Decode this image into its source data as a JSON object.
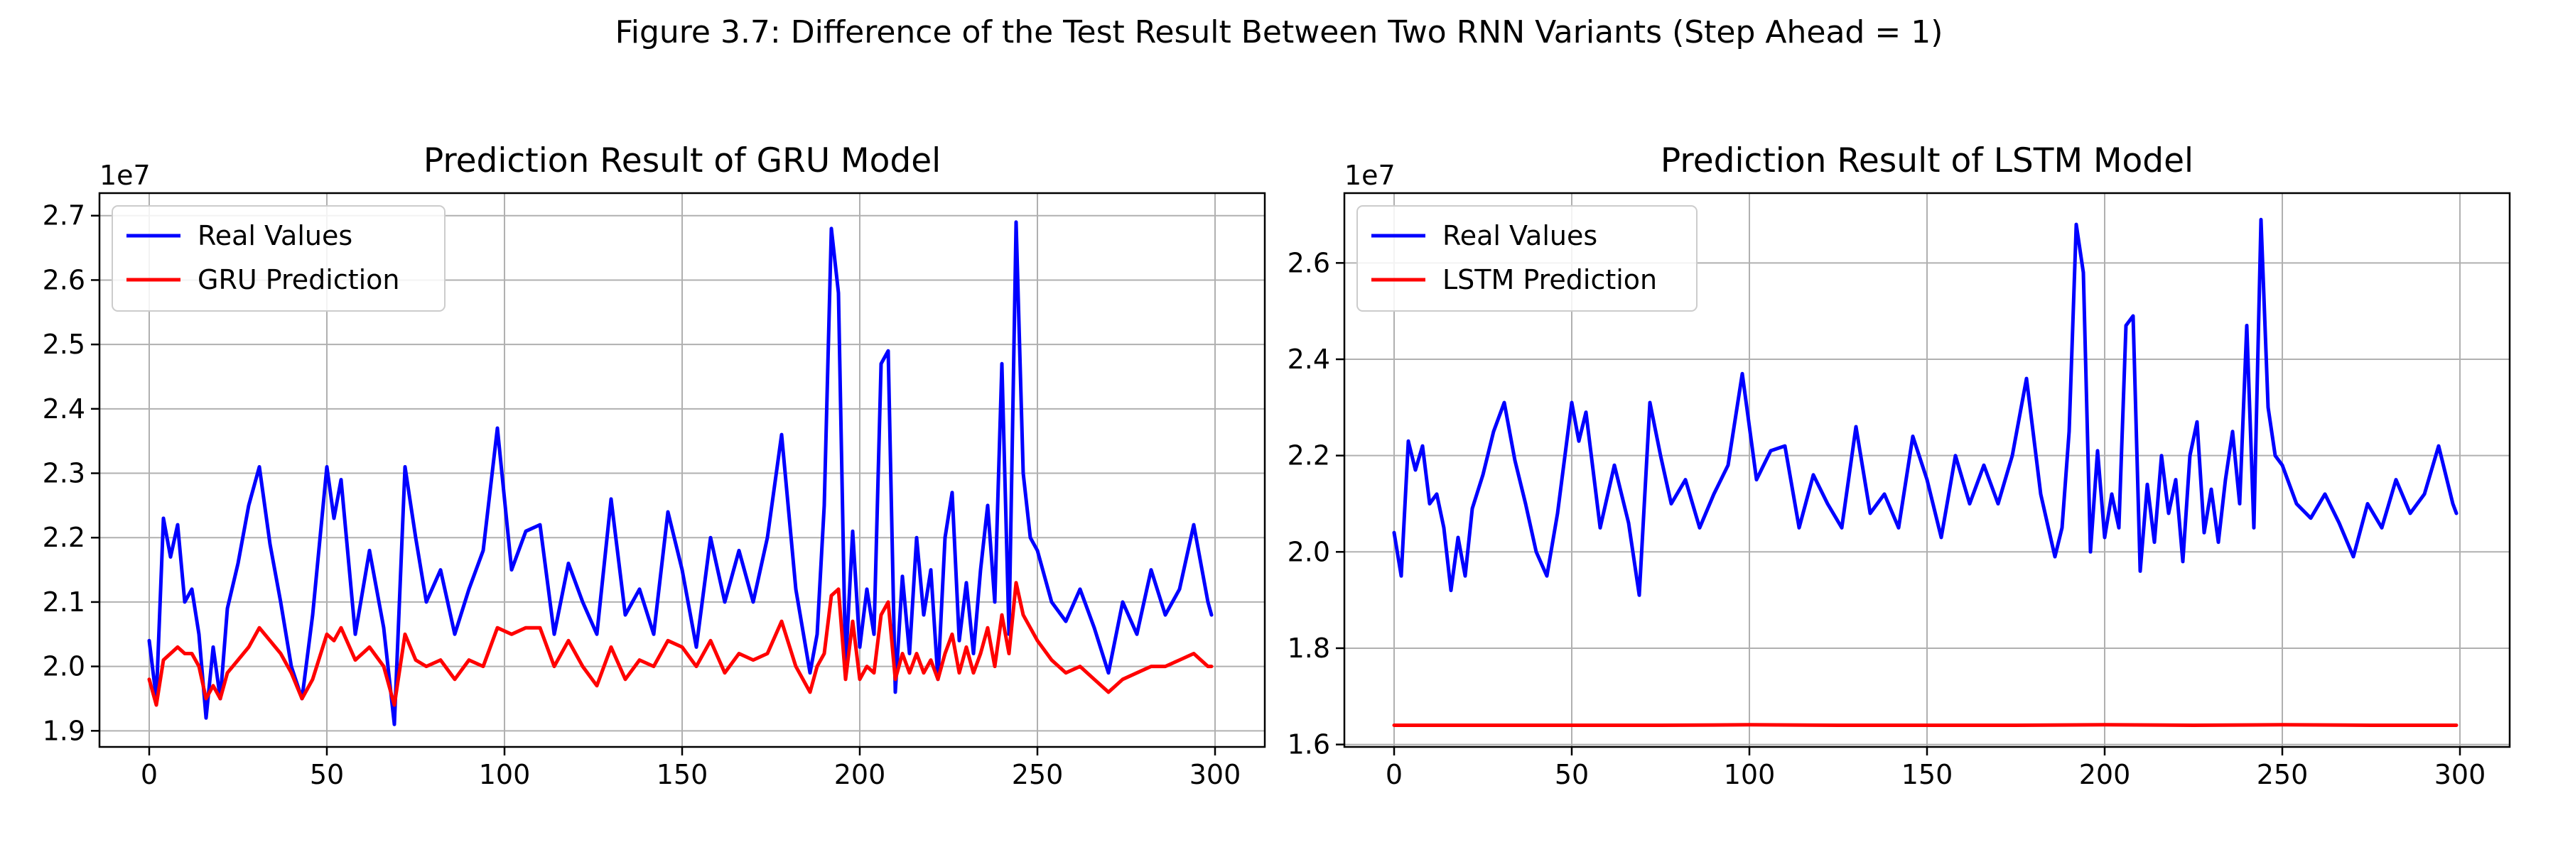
{
  "figure_title": "Figure 3.7: Difference of the Test Result Between Two RNN Variants (Step Ahead = 1)",
  "colors": {
    "real": "#0000ff",
    "prediction": "#ff0000",
    "grid": "#b0b0b0"
  },
  "chart_data": [
    {
      "type": "line",
      "title": "Prediction Result of GRU Model",
      "xlabel": "",
      "ylabel": "",
      "offset_label": "1e7",
      "xlim": [
        -14,
        314
      ],
      "ylim": [
        1.875,
        2.735
      ],
      "xticks": [
        0,
        50,
        100,
        150,
        200,
        250,
        300
      ],
      "yticks": [
        1.9,
        2.0,
        2.1,
        2.2,
        2.3,
        2.4,
        2.5,
        2.6,
        2.7
      ],
      "ytick_labels": [
        "1.9",
        "2.0",
        "2.1",
        "2.2",
        "2.3",
        "2.4",
        "2.5",
        "2.6",
        "2.7"
      ],
      "grid": true,
      "legend_position": "top-left",
      "series": [
        {
          "name": "Real Values",
          "color": "#0000ff",
          "x": [
            0,
            2,
            4,
            6,
            8,
            10,
            12,
            14,
            16,
            18,
            20,
            22,
            25,
            28,
            31,
            34,
            37,
            40,
            43,
            46,
            50,
            52,
            54,
            58,
            62,
            66,
            69,
            72,
            75,
            78,
            82,
            86,
            90,
            94,
            98,
            102,
            106,
            110,
            114,
            118,
            122,
            126,
            130,
            134,
            138,
            142,
            146,
            150,
            154,
            158,
            162,
            166,
            170,
            174,
            178,
            182,
            186,
            188,
            190,
            192,
            194,
            196,
            198,
            200,
            202,
            204,
            206,
            208,
            210,
            212,
            214,
            216,
            218,
            220,
            222,
            224,
            226,
            228,
            230,
            232,
            234,
            236,
            238,
            240,
            242,
            244,
            246,
            248,
            250,
            254,
            258,
            262,
            266,
            270,
            274,
            278,
            282,
            286,
            290,
            294,
            298,
            299
          ],
          "y": [
            2.04,
            1.95,
            2.23,
            2.17,
            2.22,
            2.1,
            2.12,
            2.05,
            1.92,
            2.03,
            1.95,
            2.09,
            2.16,
            2.25,
            2.31,
            2.19,
            2.1,
            2.0,
            1.95,
            2.08,
            2.31,
            2.23,
            2.29,
            2.05,
            2.18,
            2.06,
            1.91,
            2.31,
            2.2,
            2.1,
            2.15,
            2.05,
            2.12,
            2.18,
            2.37,
            2.15,
            2.21,
            2.22,
            2.05,
            2.16,
            2.1,
            2.05,
            2.26,
            2.08,
            2.12,
            2.05,
            2.24,
            2.15,
            2.03,
            2.2,
            2.1,
            2.18,
            2.1,
            2.2,
            2.36,
            2.12,
            1.99,
            2.05,
            2.25,
            2.68,
            2.58,
            2.0,
            2.21,
            2.03,
            2.12,
            2.05,
            2.47,
            2.49,
            1.96,
            2.14,
            2.02,
            2.2,
            2.08,
            2.15,
            1.98,
            2.2,
            2.27,
            2.04,
            2.13,
            2.02,
            2.15,
            2.25,
            2.1,
            2.47,
            2.05,
            2.69,
            2.3,
            2.2,
            2.18,
            2.1,
            2.07,
            2.12,
            2.06,
            1.99,
            2.1,
            2.05,
            2.15,
            2.08,
            2.12,
            2.22,
            2.1,
            2.08
          ]
        },
        {
          "name": "GRU Prediction",
          "color": "#ff0000",
          "x": [
            0,
            2,
            4,
            6,
            8,
            10,
            12,
            14,
            16,
            18,
            20,
            22,
            25,
            28,
            31,
            34,
            37,
            40,
            43,
            46,
            50,
            52,
            54,
            58,
            62,
            66,
            69,
            72,
            75,
            78,
            82,
            86,
            90,
            94,
            98,
            102,
            106,
            110,
            114,
            118,
            122,
            126,
            130,
            134,
            138,
            142,
            146,
            150,
            154,
            158,
            162,
            166,
            170,
            174,
            178,
            182,
            186,
            188,
            190,
            192,
            194,
            196,
            198,
            200,
            202,
            204,
            206,
            208,
            210,
            212,
            214,
            216,
            218,
            220,
            222,
            224,
            226,
            228,
            230,
            232,
            234,
            236,
            238,
            240,
            242,
            244,
            246,
            248,
            250,
            254,
            258,
            262,
            266,
            270,
            274,
            278,
            282,
            286,
            290,
            294,
            298,
            299
          ],
          "y": [
            1.98,
            1.94,
            2.01,
            2.02,
            2.03,
            2.02,
            2.02,
            2.0,
            1.95,
            1.97,
            1.95,
            1.99,
            2.01,
            2.03,
            2.06,
            2.04,
            2.02,
            1.99,
            1.95,
            1.98,
            2.05,
            2.04,
            2.06,
            2.01,
            2.03,
            2.0,
            1.94,
            2.05,
            2.01,
            2.0,
            2.01,
            1.98,
            2.01,
            2.0,
            2.06,
            2.05,
            2.06,
            2.06,
            2.0,
            2.04,
            2.0,
            1.97,
            2.03,
            1.98,
            2.01,
            2.0,
            2.04,
            2.03,
            2.0,
            2.04,
            1.99,
            2.02,
            2.01,
            2.02,
            2.07,
            2.0,
            1.96,
            2.0,
            2.02,
            2.11,
            2.12,
            1.98,
            2.07,
            1.98,
            2.0,
            1.99,
            2.08,
            2.1,
            1.98,
            2.02,
            1.99,
            2.02,
            1.99,
            2.01,
            1.98,
            2.02,
            2.05,
            1.99,
            2.03,
            1.99,
            2.02,
            2.06,
            2.0,
            2.08,
            2.02,
            2.13,
            2.08,
            2.06,
            2.04,
            2.01,
            1.99,
            2.0,
            1.98,
            1.96,
            1.98,
            1.99,
            2.0,
            2.0,
            2.01,
            2.02,
            2.0,
            2.0
          ]
        }
      ]
    },
    {
      "type": "line",
      "title": "Prediction Result of LSTM Model",
      "xlabel": "",
      "ylabel": "",
      "offset_label": "1e7",
      "xlim": [
        -14,
        314
      ],
      "ylim": [
        1.595,
        2.745
      ],
      "xticks": [
        0,
        50,
        100,
        150,
        200,
        250,
        300
      ],
      "yticks": [
        1.6,
        1.8,
        2.0,
        2.2,
        2.4,
        2.6
      ],
      "ytick_labels": [
        "1.6",
        "1.8",
        "2.0",
        "2.2",
        "2.4",
        "2.6"
      ],
      "grid": true,
      "legend_position": "top-left",
      "series": [
        {
          "name": "Real Values",
          "color": "#0000ff",
          "x": [
            0,
            2,
            4,
            6,
            8,
            10,
            12,
            14,
            16,
            18,
            20,
            22,
            25,
            28,
            31,
            34,
            37,
            40,
            43,
            46,
            50,
            52,
            54,
            58,
            62,
            66,
            69,
            72,
            75,
            78,
            82,
            86,
            90,
            94,
            98,
            102,
            106,
            110,
            114,
            118,
            122,
            126,
            130,
            134,
            138,
            142,
            146,
            150,
            154,
            158,
            162,
            166,
            170,
            174,
            178,
            182,
            186,
            188,
            190,
            192,
            194,
            196,
            198,
            200,
            202,
            204,
            206,
            208,
            210,
            212,
            214,
            216,
            218,
            220,
            222,
            224,
            226,
            228,
            230,
            232,
            234,
            236,
            238,
            240,
            242,
            244,
            246,
            248,
            250,
            254,
            258,
            262,
            266,
            270,
            274,
            278,
            282,
            286,
            290,
            294,
            298,
            299
          ],
          "y": [
            2.04,
            1.95,
            2.23,
            2.17,
            2.22,
            2.1,
            2.12,
            2.05,
            1.92,
            2.03,
            1.95,
            2.09,
            2.16,
            2.25,
            2.31,
            2.19,
            2.1,
            2.0,
            1.95,
            2.08,
            2.31,
            2.23,
            2.29,
            2.05,
            2.18,
            2.06,
            1.91,
            2.31,
            2.2,
            2.1,
            2.15,
            2.05,
            2.12,
            2.18,
            2.37,
            2.15,
            2.21,
            2.22,
            2.05,
            2.16,
            2.1,
            2.05,
            2.26,
            2.08,
            2.12,
            2.05,
            2.24,
            2.15,
            2.03,
            2.2,
            2.1,
            2.18,
            2.1,
            2.2,
            2.36,
            2.12,
            1.99,
            2.05,
            2.25,
            2.68,
            2.58,
            2.0,
            2.21,
            2.03,
            2.12,
            2.05,
            2.47,
            2.49,
            1.96,
            2.14,
            2.02,
            2.2,
            2.08,
            2.15,
            1.98,
            2.2,
            2.27,
            2.04,
            2.13,
            2.02,
            2.15,
            2.25,
            2.1,
            2.47,
            2.05,
            2.69,
            2.3,
            2.2,
            2.18,
            2.1,
            2.07,
            2.12,
            2.06,
            1.99,
            2.1,
            2.05,
            2.15,
            2.08,
            2.12,
            2.22,
            2.1,
            2.08
          ]
        },
        {
          "name": "LSTM Prediction",
          "color": "#ff0000",
          "x": [
            0,
            25,
            50,
            75,
            100,
            125,
            150,
            175,
            200,
            225,
            250,
            275,
            299
          ],
          "y": [
            1.64,
            1.64,
            1.64,
            1.64,
            1.641,
            1.64,
            1.64,
            1.64,
            1.641,
            1.64,
            1.641,
            1.64,
            1.64
          ]
        }
      ]
    }
  ]
}
